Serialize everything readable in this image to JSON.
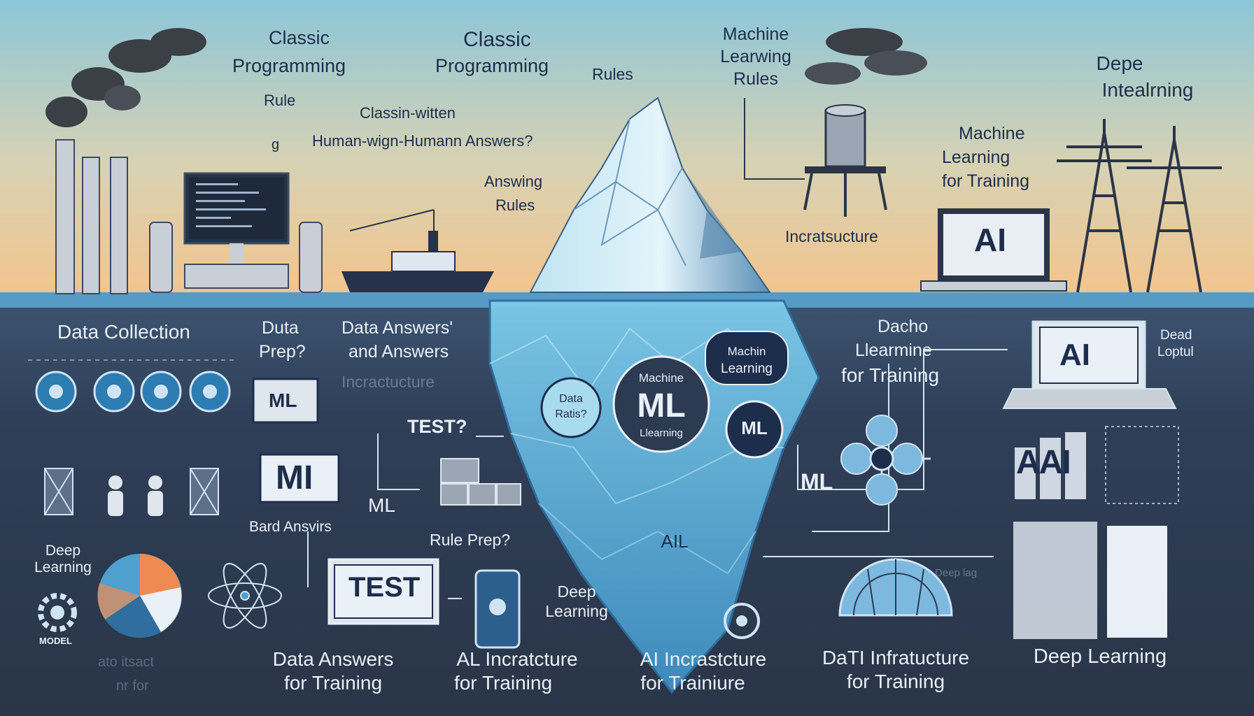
{
  "colors": {
    "sky_top": "#8cc6d8",
    "sky_bottom": "#f4c48c",
    "water_line": "#5aa8d4",
    "deep_water": "#2c3a52",
    "iceberg": "#8ed0ec",
    "label_dark": "#1d2d4c",
    "label_light": "#e9f0f7"
  },
  "above": {
    "classic_1": "Classic",
    "classic_1b": "Programming",
    "rule": "Rule",
    "g_char": "g",
    "classic_2": "Classic",
    "classic_2b": "Programming",
    "rules_right": "Rules",
    "classin": "Classin-witten",
    "human": "Human-wign-Humann Answers?",
    "answing": "Answing",
    "answing_rules": "Rules",
    "ml_rules_1": "Machine",
    "ml_rules_2": "Learwing",
    "ml_rules_3": "Rules",
    "depe": "Depe",
    "intealrning": "Intealrning",
    "machine_top": "Machine",
    "learning_top": "Learning",
    "for_training_top": "for Training",
    "infra": "Incratsucture",
    "ai_laptop": "AI"
  },
  "below": {
    "data_collection": "Data Collection",
    "duta": "Duta",
    "prep": "Prep?",
    "data_answers": "Data Answers'",
    "and_answers": "and Answers",
    "incr_faint": "Incractucture",
    "ml_box": "ML",
    "mi_box": "MI",
    "test_q": "TEST?",
    "ml_plain": "ML",
    "bard_answers": "Bard Ansvirs",
    "rule_prep": "Rule Prep?",
    "test_box": "TEST",
    "deep_left_1": "Deep",
    "deep_left_2": "Learning",
    "model": "MODEL",
    "faint_1": "ato itsact",
    "faint_2": "nr for",
    "bottom_1a": "Data Answers",
    "bottom_1b": "for Training",
    "bottom_2a": "AL Incratcture",
    "bottom_2b": "for Training",
    "bottom_3a": "AI Incrastcture",
    "bottom_3b": "for Trainiure",
    "bottom_4a": "DaTI Infratucture",
    "bottom_4b": "for Training",
    "bottom_5": "Deep Learning",
    "deep_mid_1": "Deep",
    "deep_mid_2": "Learning",
    "dacho": "Dacho",
    "llearmine": "Llearmine",
    "for_training_r": "for Training",
    "ml_right": "ML",
    "ai_monitor": "AI",
    "dead": "Dead",
    "loptul": "Loptul",
    "aai": "AAI",
    "deep_faint": "Deep lag"
  },
  "iceberg": {
    "data_ratis_1": "Data",
    "data_ratis_2": "Ratis?",
    "machine": "Machine",
    "ml_big": "ML",
    "llearning": "Llearning",
    "machin": "Machin",
    "learning": "Learning",
    "ml_circle": "ML",
    "ail": "AIL"
  }
}
